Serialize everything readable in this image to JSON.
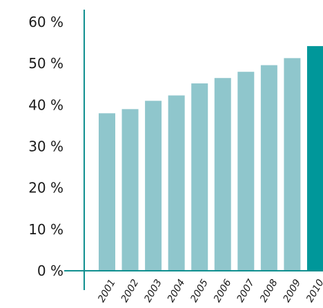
{
  "chart_data": {
    "type": "bar",
    "title": "",
    "xlabel": "",
    "ylabel": "",
    "categories": [
      "2001",
      "2002",
      "2003",
      "2004",
      "2005",
      "2006",
      "2007",
      "2008",
      "2009",
      "2010"
    ],
    "values": [
      38,
      39,
      41,
      42.3,
      45.2,
      46.5,
      48,
      49.6,
      51.3,
      54.2
    ],
    "ylim": [
      0,
      60
    ],
    "yticks": [
      0,
      10,
      20,
      30,
      40,
      50,
      60
    ],
    "ytick_labels": [
      "0 %",
      "10 %",
      "20 %",
      "30 %",
      "40 %",
      "50 %",
      "60 %"
    ],
    "grid": false,
    "legend": "none",
    "colors": {
      "bar": "#8fc6cc",
      "highlight_bar": "#00979a",
      "axis": "#0f8f8f"
    },
    "highlight_category": "2010"
  }
}
